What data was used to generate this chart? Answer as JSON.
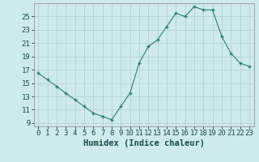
{
  "x": [
    0,
    1,
    2,
    3,
    4,
    5,
    6,
    7,
    8,
    9,
    10,
    11,
    12,
    13,
    14,
    15,
    16,
    17,
    18,
    19,
    20,
    21,
    22,
    23
  ],
  "y": [
    16.5,
    15.5,
    14.5,
    13.5,
    12.5,
    11.5,
    10.5,
    10.0,
    9.5,
    11.5,
    13.5,
    18.0,
    20.5,
    21.5,
    23.5,
    25.5,
    25.0,
    26.5,
    26.0,
    26.0,
    22.0,
    19.5,
    18.0,
    17.5
  ],
  "xlabel": "Humidex (Indice chaleur)",
  "line_color": "#2e7d6e",
  "marker_color": "#2e7d6e",
  "bg_color": "#ceeaea",
  "grid_color": "#b0cccc",
  "tick_label_color": "#1a4a4a",
  "ylim": [
    8.5,
    27
  ],
  "yticks": [
    9,
    11,
    13,
    15,
    17,
    19,
    21,
    23,
    25
  ],
  "xticks": [
    0,
    1,
    2,
    3,
    4,
    5,
    6,
    7,
    8,
    9,
    10,
    11,
    12,
    13,
    14,
    15,
    16,
    17,
    18,
    19,
    20,
    21,
    22,
    23
  ],
  "xtick_labels": [
    "0",
    "1",
    "2",
    "3",
    "4",
    "5",
    "6",
    "7",
    "8",
    "9",
    "10",
    "11",
    "12",
    "13",
    "14",
    "15",
    "16",
    "17",
    "18",
    "19",
    "20",
    "21",
    "22",
    "23"
  ],
  "font_size": 6.5,
  "xlabel_font_size": 7.5
}
